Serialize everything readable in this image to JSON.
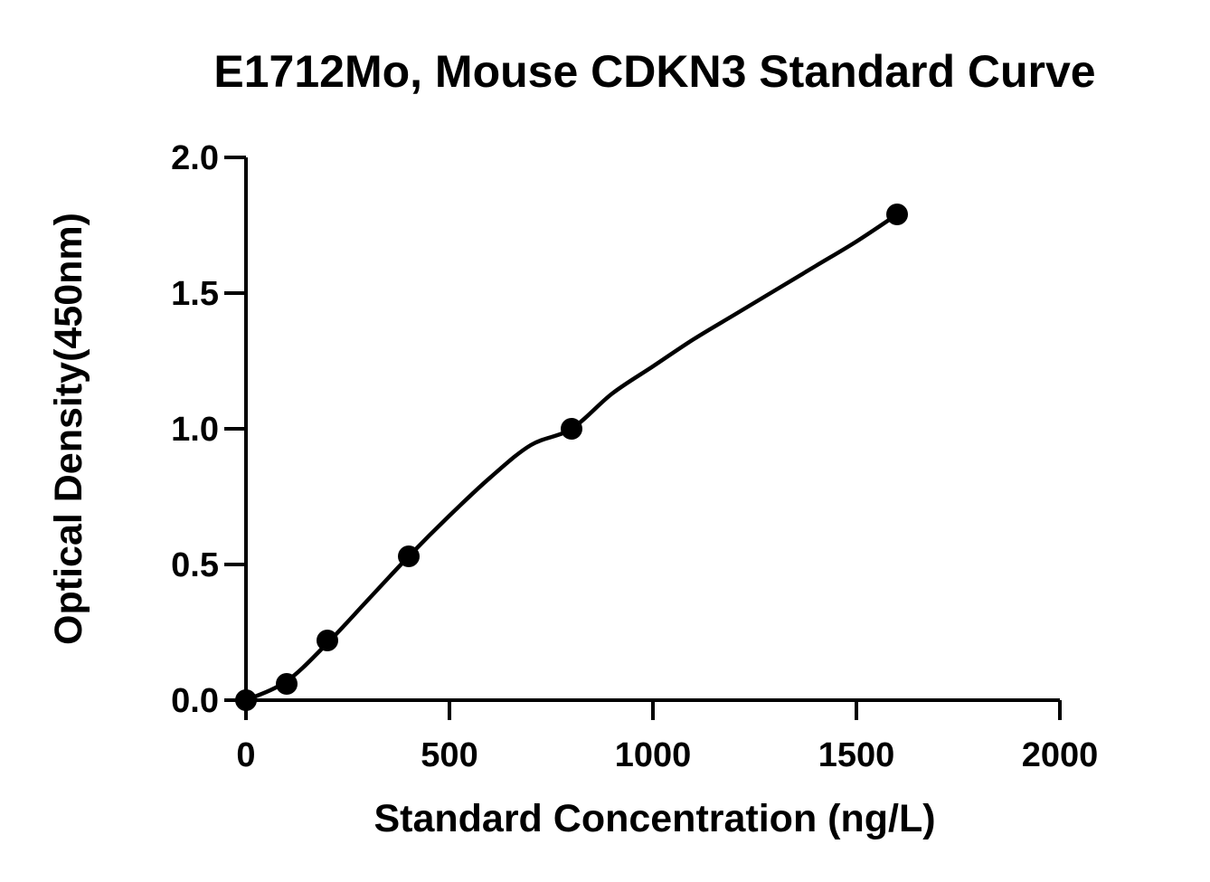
{
  "chart_data": {
    "type": "scatter",
    "title": "E1712Mo, Mouse CDKN3 Standard Curve",
    "xlabel": "Standard Concentration (ng/L)",
    "ylabel": "Optical Density(450nm)",
    "xlim": [
      0,
      2000
    ],
    "ylim": [
      0,
      2.0
    ],
    "xticks": [
      0,
      500,
      1000,
      1500,
      2000
    ],
    "xtick_labels": [
      "0",
      "500",
      "1000",
      "1500",
      "2000"
    ],
    "yticks": [
      0,
      0.5,
      1.0,
      1.5,
      2.0
    ],
    "ytick_labels": [
      "0.0",
      "0.5",
      "1.0",
      "1.5",
      "2.0"
    ],
    "grid": false,
    "series": [
      {
        "x": [
          0,
          100,
          200,
          400,
          800,
          1600
        ],
        "y": [
          0.0,
          0.06,
          0.22,
          0.53,
          1.0,
          1.79
        ]
      }
    ],
    "fit_curve": {
      "type": "smooth",
      "x": [
        0,
        100,
        200,
        300,
        400,
        500,
        600,
        700,
        800,
        900,
        1000,
        1100,
        1200,
        1300,
        1400,
        1500,
        1600
      ],
      "y": [
        0.0,
        0.07,
        0.21,
        0.37,
        0.53,
        0.68,
        0.82,
        0.94,
        1.0,
        1.13,
        1.23,
        1.33,
        1.42,
        1.51,
        1.6,
        1.69,
        1.79
      ]
    },
    "colors": {
      "marker": "#000000",
      "line": "#000000",
      "axis": "#000000",
      "background": "#ffffff"
    }
  }
}
